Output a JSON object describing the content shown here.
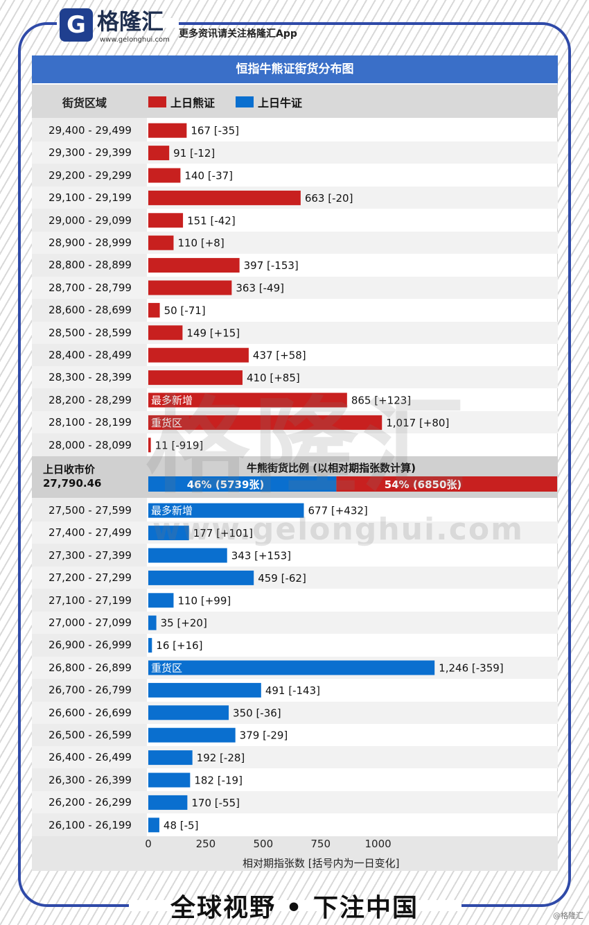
{
  "brand": {
    "logo_glyph": "G",
    "name": "格隆汇",
    "url": "www.gelonghui.com",
    "note": "更多资讯请关注格隆汇App"
  },
  "chart_title": "恒指牛熊证街货分布图",
  "legend": {
    "axis_label": "街货区域",
    "bear": "上日熊证",
    "bull": "上日牛证"
  },
  "colors": {
    "bear": "#c8201f",
    "bull": "#0a6fcf",
    "title_bar": "#3a6fc8",
    "frame": "#2f4aa8"
  },
  "close": {
    "label": "上日收市价",
    "value": "27,790.46"
  },
  "ratio": {
    "title": "牛熊街货比例 (以相对期指张数计算)",
    "bull_text": "46% (5739张)",
    "bear_text": "54% (6850张)",
    "bull_share": 0.46,
    "bear_share": 0.54
  },
  "xaxis": {
    "ticks": [
      "0",
      "250",
      "500",
      "750",
      "1000"
    ],
    "label": "相对期指张数 [括号内为一日变化]"
  },
  "watermark": {
    "text": "格隆汇",
    "url": "www.gelonghui.com"
  },
  "footer": {
    "slogan": "全球视野 • 下注中国",
    "credit": "@格隆汇"
  },
  "chart_data": {
    "type": "bar",
    "xlim": [
      0,
      1300
    ],
    "xticks": [
      0,
      250,
      500,
      750,
      1000
    ],
    "xlabel": "相对期指张数 [括号内为一日变化]",
    "series": [
      {
        "name": "上日熊证",
        "categories": [
          "29,400 - 29,499",
          "29,300 - 29,399",
          "29,200 - 29,299",
          "29,100 - 29,199",
          "29,000 - 29,099",
          "28,900 - 28,999",
          "28,800 - 28,899",
          "28,700 - 28,799",
          "28,600 - 28,699",
          "28,500 - 28,599",
          "28,400 - 28,499",
          "28,300 - 28,399",
          "28,200 - 28,299",
          "28,100 - 28,199",
          "28,000 - 28,099"
        ],
        "values": [
          167,
          91,
          140,
          663,
          151,
          110,
          397,
          363,
          50,
          149,
          437,
          410,
          865,
          1017,
          11
        ],
        "labels": [
          "167 [-35]",
          "91 [-12]",
          "140 [-37]",
          "663 [-20]",
          "151 [-42]",
          "110 [+8]",
          "397 [-153]",
          "363 [-49]",
          "50 [-71]",
          "149 [+15]",
          "437 [+58]",
          "410 [+85]",
          "865 [+123]",
          "1,017 [+80]",
          "11 [-919]"
        ],
        "annotations": [
          "",
          "",
          "",
          "",
          "",
          "",
          "",
          "",
          "",
          "",
          "",
          "",
          "最多新增",
          "重货区",
          ""
        ]
      },
      {
        "name": "上日牛证",
        "categories": [
          "27,500 - 27,599",
          "27,400 - 27,499",
          "27,300 - 27,399",
          "27,200 - 27,299",
          "27,100 - 27,199",
          "27,000 - 27,099",
          "26,900 - 26,999",
          "26,800 - 26,899",
          "26,700 - 26,799",
          "26,600 - 26,699",
          "26,500 - 26,599",
          "26,400 - 26,499",
          "26,300 - 26,399",
          "26,200 - 26,299",
          "26,100 - 26,199"
        ],
        "values": [
          677,
          177,
          343,
          459,
          110,
          35,
          16,
          1246,
          491,
          350,
          379,
          192,
          182,
          170,
          48
        ],
        "labels": [
          "677 [+432]",
          "177 [+101]",
          "343 [+153]",
          "459 [-62]",
          "110 [+99]",
          "35 [+20]",
          "16 [+16]",
          "1,246 [-359]",
          "491 [-143]",
          "350 [-36]",
          "379 [-29]",
          "192 [-28]",
          "182 [-19]",
          "170 [-55]",
          "48 [-5]"
        ],
        "annotations": [
          "最多新增",
          "",
          "",
          "",
          "",
          "",
          "",
          "重货区",
          "",
          "",
          "",
          "",
          "",
          "",
          ""
        ]
      }
    ]
  }
}
